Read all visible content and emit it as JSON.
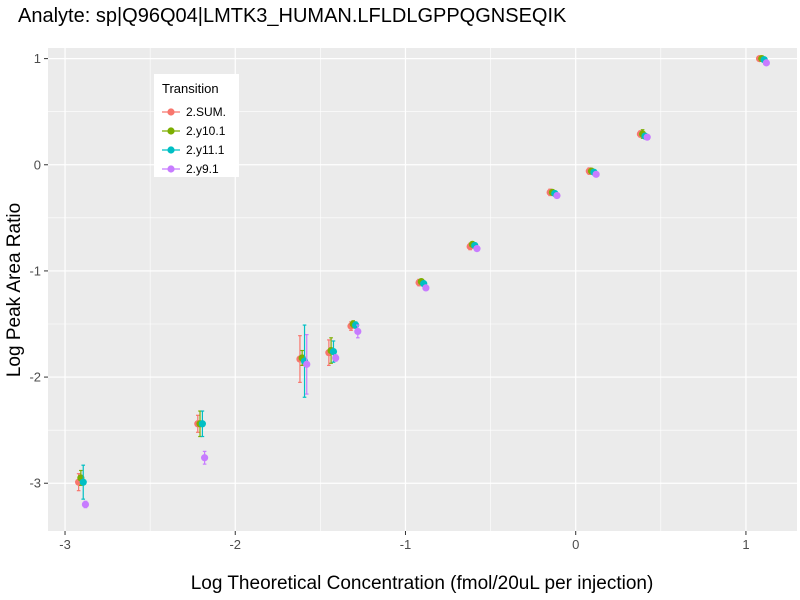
{
  "chart_data": {
    "type": "scatter",
    "title": "Analyte: sp|Q96Q04|LMTK3_HUMAN.LFLDLGPPQGNSEQIK",
    "xlabel": "Log Theoretical Concentration (fmol/20uL per injection)",
    "ylabel": "Log Peak Area Ratio",
    "xlim": [
      -3.1,
      1.3
    ],
    "ylim": [
      -3.45,
      1.1
    ],
    "x_ticks": [
      "-3",
      "-2",
      "-1",
      "0",
      "1"
    ],
    "y_ticks": [
      "-3",
      "-2",
      "-1",
      "0",
      "1"
    ],
    "grid": true,
    "error_bars": true,
    "legend": {
      "title": "Transition",
      "position": "top-left"
    },
    "x": [
      -2.9,
      -2.2,
      -1.6,
      -1.43,
      -1.3,
      -0.9,
      -0.6,
      -0.13,
      0.1,
      0.4,
      1.1
    ],
    "series": [
      {
        "name": "2.SUM.",
        "color": "#F8766D",
        "values": [
          -2.99,
          -2.44,
          -1.83,
          -1.77,
          -1.52,
          -1.11,
          -0.77,
          -0.26,
          -0.06,
          0.29,
          1.0
        ],
        "err": [
          0.08,
          0.08,
          0.22,
          0.12,
          0.04,
          0.03,
          0.03,
          0.03,
          0.03,
          0.03,
          0.02
        ]
      },
      {
        "name": "2.y10.1",
        "color": "#7CAE00",
        "values": [
          -2.95,
          -2.44,
          -1.82,
          -1.75,
          -1.5,
          -1.1,
          -0.75,
          -0.26,
          -0.06,
          0.29,
          1.0
        ],
        "err": [
          0.07,
          0.12,
          0.07,
          0.12,
          0.03,
          0.02,
          0.02,
          0.02,
          0.02,
          0.04,
          0.02
        ]
      },
      {
        "name": "2.y11.1",
        "color": "#00BFC4",
        "values": [
          -2.99,
          -2.44,
          -1.85,
          -1.76,
          -1.51,
          -1.12,
          -0.76,
          -0.27,
          -0.07,
          0.27,
          0.99
        ],
        "err": [
          0.16,
          0.12,
          0.34,
          0.1,
          0.03,
          0.02,
          0.02,
          0.02,
          0.02,
          0.02,
          0.02
        ]
      },
      {
        "name": "2.y9.1",
        "color": "#C77CFF",
        "values": [
          -3.2,
          -2.76,
          -1.88,
          -1.82,
          -1.57,
          -1.16,
          -0.79,
          -0.29,
          -0.09,
          0.26,
          0.96
        ],
        "err": [
          0.03,
          0.06,
          0.28,
          0.03,
          0.06,
          0.02,
          0.02,
          0.02,
          0.02,
          0.02,
          0.02
        ]
      }
    ]
  }
}
